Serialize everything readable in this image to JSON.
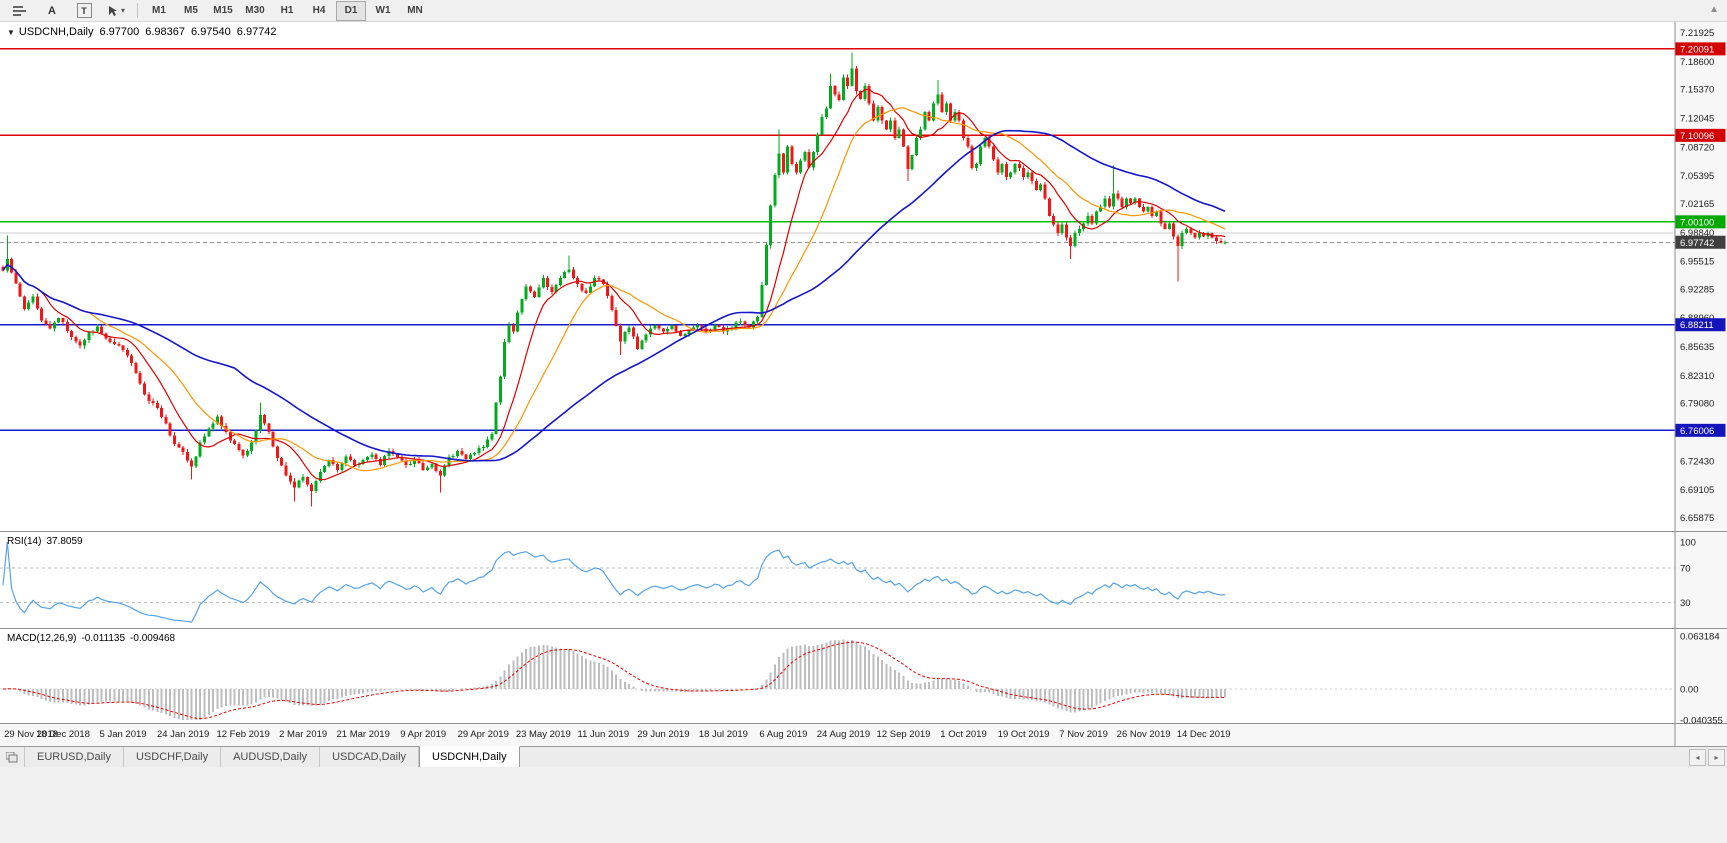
{
  "toolbar": {
    "tools": {
      "a_label": "A",
      "t_label": "T"
    },
    "timeframes": [
      "M1",
      "M5",
      "M15",
      "M30",
      "H1",
      "H4",
      "D1",
      "W1",
      "MN"
    ],
    "active_timeframe": "D1"
  },
  "chart_header": {
    "symbol": "USDCNH,Daily",
    "open": "6.97700",
    "high": "6.98367",
    "low": "6.97540",
    "close": "6.97742"
  },
  "rsi_pane": {
    "label": "RSI(14)",
    "value": "37.8059"
  },
  "macd_pane": {
    "label": "MACD(12,26,9)",
    "main_value": "-0.011135",
    "signal_value": "-0.009468"
  },
  "tabs": [
    {
      "label": "EURUSD,Daily",
      "active": false
    },
    {
      "label": "USDCHF,Daily",
      "active": false
    },
    {
      "label": "AUDUSD,Daily",
      "active": false
    },
    {
      "label": "USDCAD,Daily",
      "active": false
    },
    {
      "label": "USDCNH,Daily",
      "active": true
    }
  ],
  "chart_data": {
    "type": "candlestick",
    "symbol": "USDCNH",
    "timeframe": "Daily",
    "title": "USDCNH,Daily",
    "last_ohlc": {
      "open": 6.977,
      "high": 6.98367,
      "low": 6.9754,
      "close": 6.97742
    },
    "bars": 286,
    "bars_per_time_label": 14,
    "ylim": [
      6.65875,
      7.21925
    ],
    "price_axis_labels": [
      "7.21925",
      "7.18600",
      "7.15370",
      "7.12045",
      "7.08720",
      "7.05395",
      "7.02165",
      "6.98840",
      "6.95515",
      "6.92285",
      "6.88960",
      "6.85635",
      "6.82310",
      "6.79080",
      "6.75755",
      "6.72430",
      "6.69105",
      "6.65875"
    ],
    "time_axis_labels": [
      "29 Nov 2018",
      "18 Dec 2018",
      "5 Jan 2019",
      "24 Jan 2019",
      "12 Feb 2019",
      "2 Mar 2019",
      "21 Mar 2019",
      "9 Apr 2019",
      "29 Apr 2019",
      "23 May 2019",
      "11 Jun 2019",
      "29 Jun 2019",
      "18 Jul 2019",
      "6 Aug 2019",
      "24 Aug 2019",
      "12 Sep 2019",
      "1 Oct 2019",
      "19 Oct 2019",
      "7 Nov 2019",
      "26 Nov 2019",
      "14 Dec 2019"
    ],
    "horizontal_lines": [
      {
        "price": 7.20091,
        "color": "#e00000",
        "style": "solid"
      },
      {
        "price": 7.10096,
        "color": "#e00000",
        "style": "solid"
      },
      {
        "price": 7.001,
        "color": "#00c000",
        "style": "solid"
      },
      {
        "price": 6.9884,
        "color": "#cccccc",
        "style": "solid"
      },
      {
        "price": 6.88211,
        "color": "#1818cc",
        "style": "solid"
      },
      {
        "price": 6.76006,
        "color": "#1818cc",
        "style": "solid"
      }
    ],
    "bid_line": {
      "price": 6.97742,
      "color": "#9a9a9a",
      "style": "dash"
    },
    "price_tags": [
      {
        "value": "7.20091",
        "color": "#d40000"
      },
      {
        "value": "7.10096",
        "color": "#d40000"
      },
      {
        "value": "7.00100",
        "color": "#00a800"
      },
      {
        "value": "6.97742",
        "color": "#3f3f3f"
      },
      {
        "value": "6.88211",
        "color": "#1414bb"
      },
      {
        "value": "6.76006",
        "color": "#1414bb"
      }
    ],
    "moving_averages": [
      {
        "period": 10,
        "color": "#dd0000"
      },
      {
        "period": 21,
        "color": "#ff9500"
      },
      {
        "period": 55,
        "color": "#1515cc"
      }
    ],
    "up_color": "#00ad1d",
    "down_color": "#f21616",
    "rsi": {
      "period": 14,
      "current": 37.8059,
      "color": "#55a3e8",
      "levels": [
        70,
        30
      ],
      "axis_labels": [
        "100",
        "70",
        "30"
      ]
    },
    "macd": {
      "fast": 12,
      "slow": 26,
      "signal": 9,
      "current": -0.011135,
      "current_signal": -0.009468,
      "axis_labels": [
        "0.063184",
        "0.00",
        "-0.040355"
      ],
      "histogram_color": "#bdbdbd",
      "signal_color": "#ee0000"
    },
    "anchors": [
      [
        0,
        6.945
      ],
      [
        1,
        6.958,
        6.985
      ],
      [
        3,
        6.93
      ],
      [
        5,
        6.9
      ],
      [
        7,
        6.915
      ],
      [
        9,
        6.887
      ],
      [
        11,
        6.878
      ],
      [
        13,
        6.89
      ],
      [
        14,
        6.885
      ],
      [
        16,
        6.868
      ],
      [
        18,
        6.858
      ],
      [
        20,
        6.873
      ],
      [
        22,
        6.88
      ],
      [
        24,
        6.866
      ],
      [
        26,
        6.86
      ],
      [
        28,
        6.853
      ],
      [
        30,
        6.838
      ],
      [
        32,
        6.814
      ],
      [
        34,
        6.794
      ],
      [
        36,
        6.786
      ],
      [
        38,
        6.768
      ],
      [
        40,
        6.744
      ],
      [
        42,
        6.735
      ],
      [
        44,
        6.718,
        null,
        6.703
      ],
      [
        46,
        6.746
      ],
      [
        48,
        6.762
      ],
      [
        50,
        6.776
      ],
      [
        52,
        6.758
      ],
      [
        54,
        6.744
      ],
      [
        56,
        6.731
      ],
      [
        58,
        6.746
      ],
      [
        60,
        6.778,
        6.792
      ],
      [
        62,
        6.758
      ],
      [
        64,
        6.728
      ],
      [
        66,
        6.708
      ],
      [
        68,
        6.694,
        null,
        6.678
      ],
      [
        70,
        6.706
      ],
      [
        72,
        6.69,
        null,
        6.672
      ],
      [
        74,
        6.712
      ],
      [
        76,
        6.726
      ],
      [
        78,
        6.714
      ],
      [
        80,
        6.73
      ],
      [
        82,
        6.72
      ],
      [
        84,
        6.726
      ],
      [
        86,
        6.732
      ],
      [
        88,
        6.72
      ],
      [
        90,
        6.736
      ],
      [
        92,
        6.729
      ],
      [
        94,
        6.72
      ],
      [
        96,
        6.726
      ],
      [
        98,
        6.714
      ],
      [
        100,
        6.721
      ],
      [
        102,
        6.708,
        null,
        6.688
      ],
      [
        104,
        6.729
      ],
      [
        106,
        6.736
      ],
      [
        108,
        6.727
      ],
      [
        110,
        6.734
      ],
      [
        112,
        6.741
      ],
      [
        114,
        6.756
      ],
      [
        115,
        6.792
      ],
      [
        116,
        6.822
      ],
      [
        117,
        6.862
      ],
      [
        118,
        6.882
      ],
      [
        119,
        6.874
      ],
      [
        120,
        6.896
      ],
      [
        121,
        6.912
      ],
      [
        122,
        6.926
      ],
      [
        124,
        6.914
      ],
      [
        126,
        6.936
      ],
      [
        128,
        6.92
      ],
      [
        130,
        6.936
      ],
      [
        132,
        6.946,
        6.962
      ],
      [
        134,
        6.929
      ],
      [
        136,
        6.919
      ],
      [
        138,
        6.936
      ],
      [
        140,
        6.929
      ],
      [
        142,
        6.899
      ],
      [
        144,
        6.863,
        null,
        6.847
      ],
      [
        146,
        6.879
      ],
      [
        148,
        6.854
      ],
      [
        150,
        6.871
      ],
      [
        152,
        6.881
      ],
      [
        154,
        6.874
      ],
      [
        156,
        6.881
      ],
      [
        158,
        6.869
      ],
      [
        160,
        6.876
      ],
      [
        162,
        6.881
      ],
      [
        164,
        6.874
      ],
      [
        166,
        6.881
      ],
      [
        168,
        6.874
      ],
      [
        170,
        6.879
      ],
      [
        172,
        6.886
      ],
      [
        174,
        6.879
      ],
      [
        176,
        6.891
      ],
      [
        177,
        6.928
      ],
      [
        178,
        6.974
      ],
      [
        179,
        7.02
      ],
      [
        180,
        7.055
      ],
      [
        181,
        7.08,
        7.108
      ],
      [
        182,
        7.058
      ],
      [
        183,
        7.088
      ],
      [
        184,
        7.068
      ],
      [
        185,
        7.058
      ],
      [
        186,
        7.072
      ],
      [
        187,
        7.082
      ],
      [
        188,
        7.064
      ],
      [
        189,
        7.082
      ],
      [
        190,
        7.102
      ],
      [
        191,
        7.122
      ],
      [
        192,
        7.132
      ],
      [
        193,
        7.158,
        7.172
      ],
      [
        194,
        7.148
      ],
      [
        195,
        7.142
      ],
      [
        196,
        7.168
      ],
      [
        197,
        7.158
      ],
      [
        198,
        7.178,
        7.1965
      ],
      [
        199,
        7.152
      ],
      [
        200,
        7.143
      ],
      [
        201,
        7.158
      ],
      [
        202,
        7.138
      ],
      [
        203,
        7.118
      ],
      [
        204,
        7.134
      ],
      [
        205,
        7.118
      ],
      [
        206,
        7.108
      ],
      [
        207,
        7.118
      ],
      [
        208,
        7.098
      ],
      [
        209,
        7.108
      ],
      [
        210,
        7.088
      ],
      [
        211,
        7.062,
        null,
        7.048
      ],
      [
        212,
        7.078
      ],
      [
        213,
        7.098
      ],
      [
        214,
        7.108
      ],
      [
        215,
        7.128
      ],
      [
        216,
        7.118
      ],
      [
        217,
        7.138
      ],
      [
        218,
        7.148,
        7.165
      ],
      [
        219,
        7.128
      ],
      [
        220,
        7.138
      ],
      [
        221,
        7.118
      ],
      [
        222,
        7.128
      ],
      [
        223,
        7.118
      ],
      [
        224,
        7.098
      ],
      [
        225,
        7.088
      ],
      [
        226,
        7.063
      ],
      [
        227,
        7.068
      ],
      [
        228,
        7.088
      ],
      [
        229,
        7.098
      ],
      [
        230,
        7.088
      ],
      [
        231,
        7.073
      ],
      [
        232,
        7.058
      ],
      [
        233,
        7.068
      ],
      [
        234,
        7.053
      ],
      [
        235,
        7.058
      ],
      [
        236,
        7.068
      ],
      [
        237,
        7.063
      ],
      [
        238,
        7.053
      ],
      [
        239,
        7.058
      ],
      [
        240,
        7.048
      ],
      [
        241,
        7.038
      ],
      [
        242,
        7.044
      ],
      [
        243,
        7.028
      ],
      [
        244,
        7.008
      ],
      [
        245,
        6.998
      ],
      [
        246,
        6.988
      ],
      [
        247,
        6.998
      ],
      [
        248,
        6.983
      ],
      [
        249,
        6.973,
        null,
        6.958
      ],
      [
        250,
        6.988
      ],
      [
        251,
        6.993
      ],
      [
        252,
        6.999
      ],
      [
        253,
        7.008
      ],
      [
        254,
        6.999
      ],
      [
        255,
        7.013
      ],
      [
        256,
        7.019
      ],
      [
        257,
        7.028
      ],
      [
        258,
        7.019
      ],
      [
        259,
        7.034,
        7.066
      ],
      [
        260,
        7.028
      ],
      [
        261,
        7.018
      ],
      [
        262,
        7.028
      ],
      [
        263,
        7.023
      ],
      [
        264,
        7.028
      ],
      [
        265,
        7.018
      ],
      [
        266,
        7.013
      ],
      [
        267,
        7.018
      ],
      [
        268,
        7.008
      ],
      [
        269,
        7.013
      ],
      [
        270,
        6.999
      ],
      [
        271,
        6.993
      ],
      [
        272,
        6.999
      ],
      [
        273,
        6.984
      ],
      [
        274,
        6.973,
        null,
        6.932
      ],
      [
        275,
        6.988
      ],
      [
        276,
        6.993
      ],
      [
        277,
        6.988
      ],
      [
        278,
        6.983
      ],
      [
        279,
        6.988
      ],
      [
        280,
        6.984
      ],
      [
        281,
        6.988
      ],
      [
        282,
        6.983
      ],
      [
        283,
        6.979
      ],
      [
        284,
        6.977
      ],
      [
        285,
        6.97742
      ]
    ]
  }
}
